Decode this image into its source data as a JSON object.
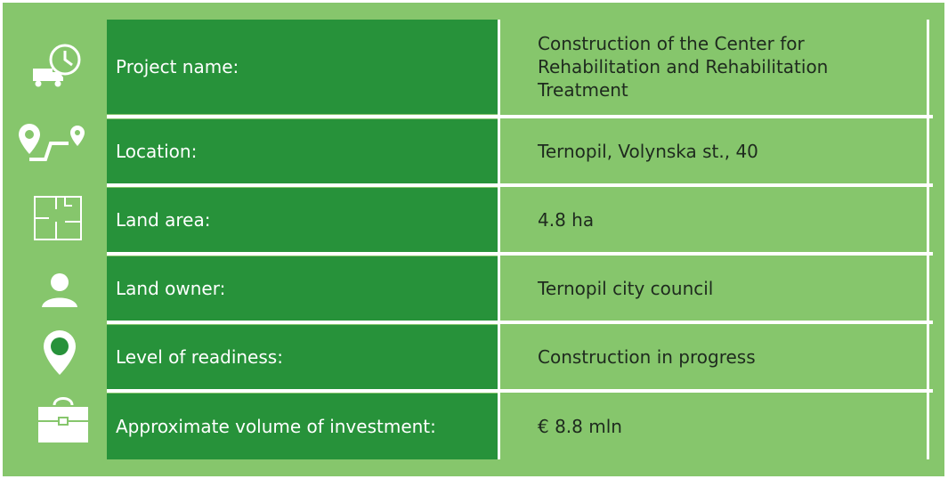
{
  "table": {
    "rows": [
      {
        "label": "Project name:",
        "value": "Construction of the Center for Rehabilitation and Rehabilitation Treatment"
      },
      {
        "label": "Location:",
        "value": "Ternopil, Volynska st., 40"
      },
      {
        "label": "Land area:",
        "value": "4.8 ha"
      },
      {
        "label": "Land owner:",
        "value": "Ternopil city council"
      },
      {
        "label": "Level of readiness:",
        "value": "Construction in progress"
      },
      {
        "label": "Approximate volume of investment:",
        "value": "€ 8.8 mln"
      }
    ]
  }
}
